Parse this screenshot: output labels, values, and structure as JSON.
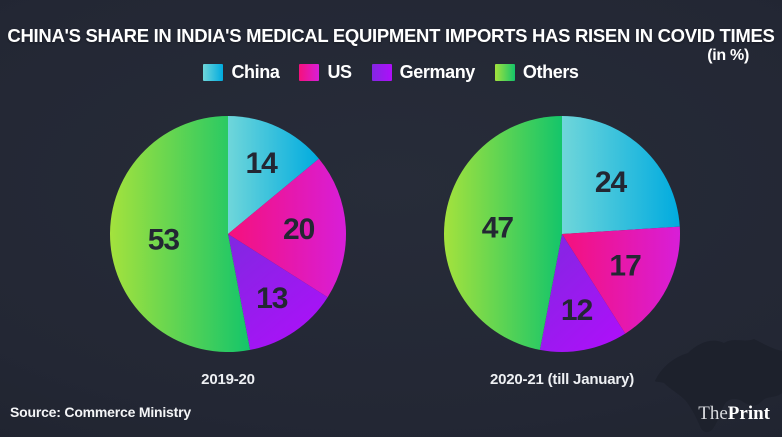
{
  "title": "CHINA'S SHARE IN INDIA'S MEDICAL EQUIPMENT IMPORTS HAS RISEN IN COVID TIMES",
  "unit_note": "(in %)",
  "legend": {
    "items": [
      {
        "label": "China",
        "gradient": [
          "#6fd6da",
          "#00abdf"
        ]
      },
      {
        "label": "US",
        "gradient": [
          "#f5117c",
          "#d81ed8"
        ]
      },
      {
        "label": "Germany",
        "gradient": [
          "#8327e2",
          "#ae0ffa"
        ]
      },
      {
        "label": "Others",
        "gradient": [
          "#a4e23d",
          "#14c56a"
        ]
      }
    ]
  },
  "chart_data": [
    {
      "type": "pie",
      "title": "2019-20",
      "categories": [
        "China",
        "US",
        "Germany",
        "Others"
      ],
      "values": [
        14,
        20,
        13,
        53
      ],
      "unit": "%",
      "start_at": "12-o-clock",
      "direction": "clockwise",
      "labels_inside": true
    },
    {
      "type": "pie",
      "title": "2020-21 (till January)",
      "categories": [
        "China",
        "US",
        "Germany",
        "Others"
      ],
      "values": [
        24,
        17,
        12,
        47
      ],
      "unit": "%",
      "start_at": "12-o-clock",
      "direction": "clockwise",
      "labels_inside": true
    }
  ],
  "colors": {
    "background": "#232734",
    "vignette_edge": "#1c202a",
    "map_silhouette": "#1d212c",
    "number_label": "#232733",
    "text": "#ffffff"
  },
  "footer": {
    "source": "Source: Commerce Ministry",
    "brand_regular": "The",
    "brand_bold": "Print"
  }
}
